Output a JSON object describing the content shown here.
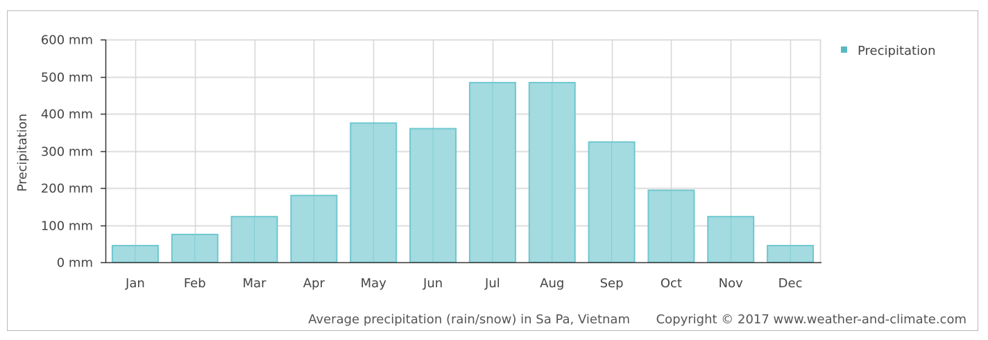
{
  "chart_data": {
    "type": "bar",
    "categories": [
      "Jan",
      "Feb",
      "Mar",
      "Apr",
      "May",
      "Jun",
      "Jul",
      "Aug",
      "Sep",
      "Oct",
      "Nov",
      "Dec"
    ],
    "series": [
      {
        "name": "Precipitation",
        "values": [
          45,
          75,
          123,
          180,
          375,
          360,
          484,
          484,
          324,
          194,
          123,
          45
        ]
      }
    ],
    "ylabel": "Precipitation",
    "ylim": [
      0,
      600
    ],
    "yticks": [
      0,
      100,
      200,
      300,
      400,
      500,
      600
    ],
    "ytick_labels": [
      "0 mm",
      "100 mm",
      "200 mm",
      "300 mm",
      "400 mm",
      "500 mm",
      "600 mm"
    ],
    "grid": true,
    "legend_position": "top-right",
    "colors": {
      "bar_fill": "#a3dbe0",
      "bar_stroke": "#6fc7cf",
      "legend_marker": "#5bb8c2"
    }
  },
  "footer": {
    "caption": "Average precipitation (rain/snow) in Sa Pa, Vietnam",
    "copyright": "Copyright © 2017 www.weather-and-climate.com"
  }
}
